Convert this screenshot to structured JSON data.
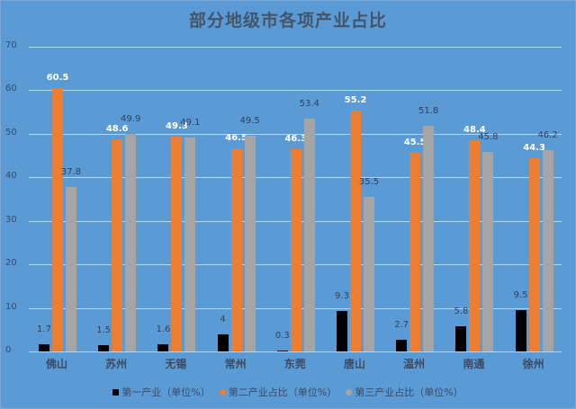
{
  "chart_data": {
    "type": "bar",
    "title": "部分地级市各项产业占比",
    "xlabel": "",
    "ylabel": "",
    "ylim": [
      0,
      70
    ],
    "yticks": [
      0,
      10,
      20,
      30,
      40,
      50,
      60,
      70
    ],
    "grid": true,
    "legend_position": "bottom",
    "categories": [
      "佛山",
      "苏州",
      "无锡",
      "常州",
      "东莞",
      "唐山",
      "温州",
      "南通",
      "徐州"
    ],
    "series": [
      {
        "name": "第一产业（单位%）",
        "color": "#000000",
        "label_style": "dark",
        "values": [
          1.7,
          1.5,
          1.6,
          4,
          0.3,
          9.3,
          2.7,
          5.8,
          9.5
        ]
      },
      {
        "name": "第二产业占比（单位%）",
        "color": "#ed7d31",
        "label_style": "white",
        "values": [
          60.5,
          48.6,
          49.3,
          46.5,
          46.3,
          55.2,
          45.5,
          48.4,
          44.3
        ]
      },
      {
        "name": "第三产业占比（单位%）",
        "color": "#a5a5a5",
        "label_style": "dark",
        "values": [
          37.8,
          49.9,
          49.1,
          49.5,
          53.4,
          35.5,
          51.8,
          45.8,
          46.2
        ]
      }
    ]
  }
}
